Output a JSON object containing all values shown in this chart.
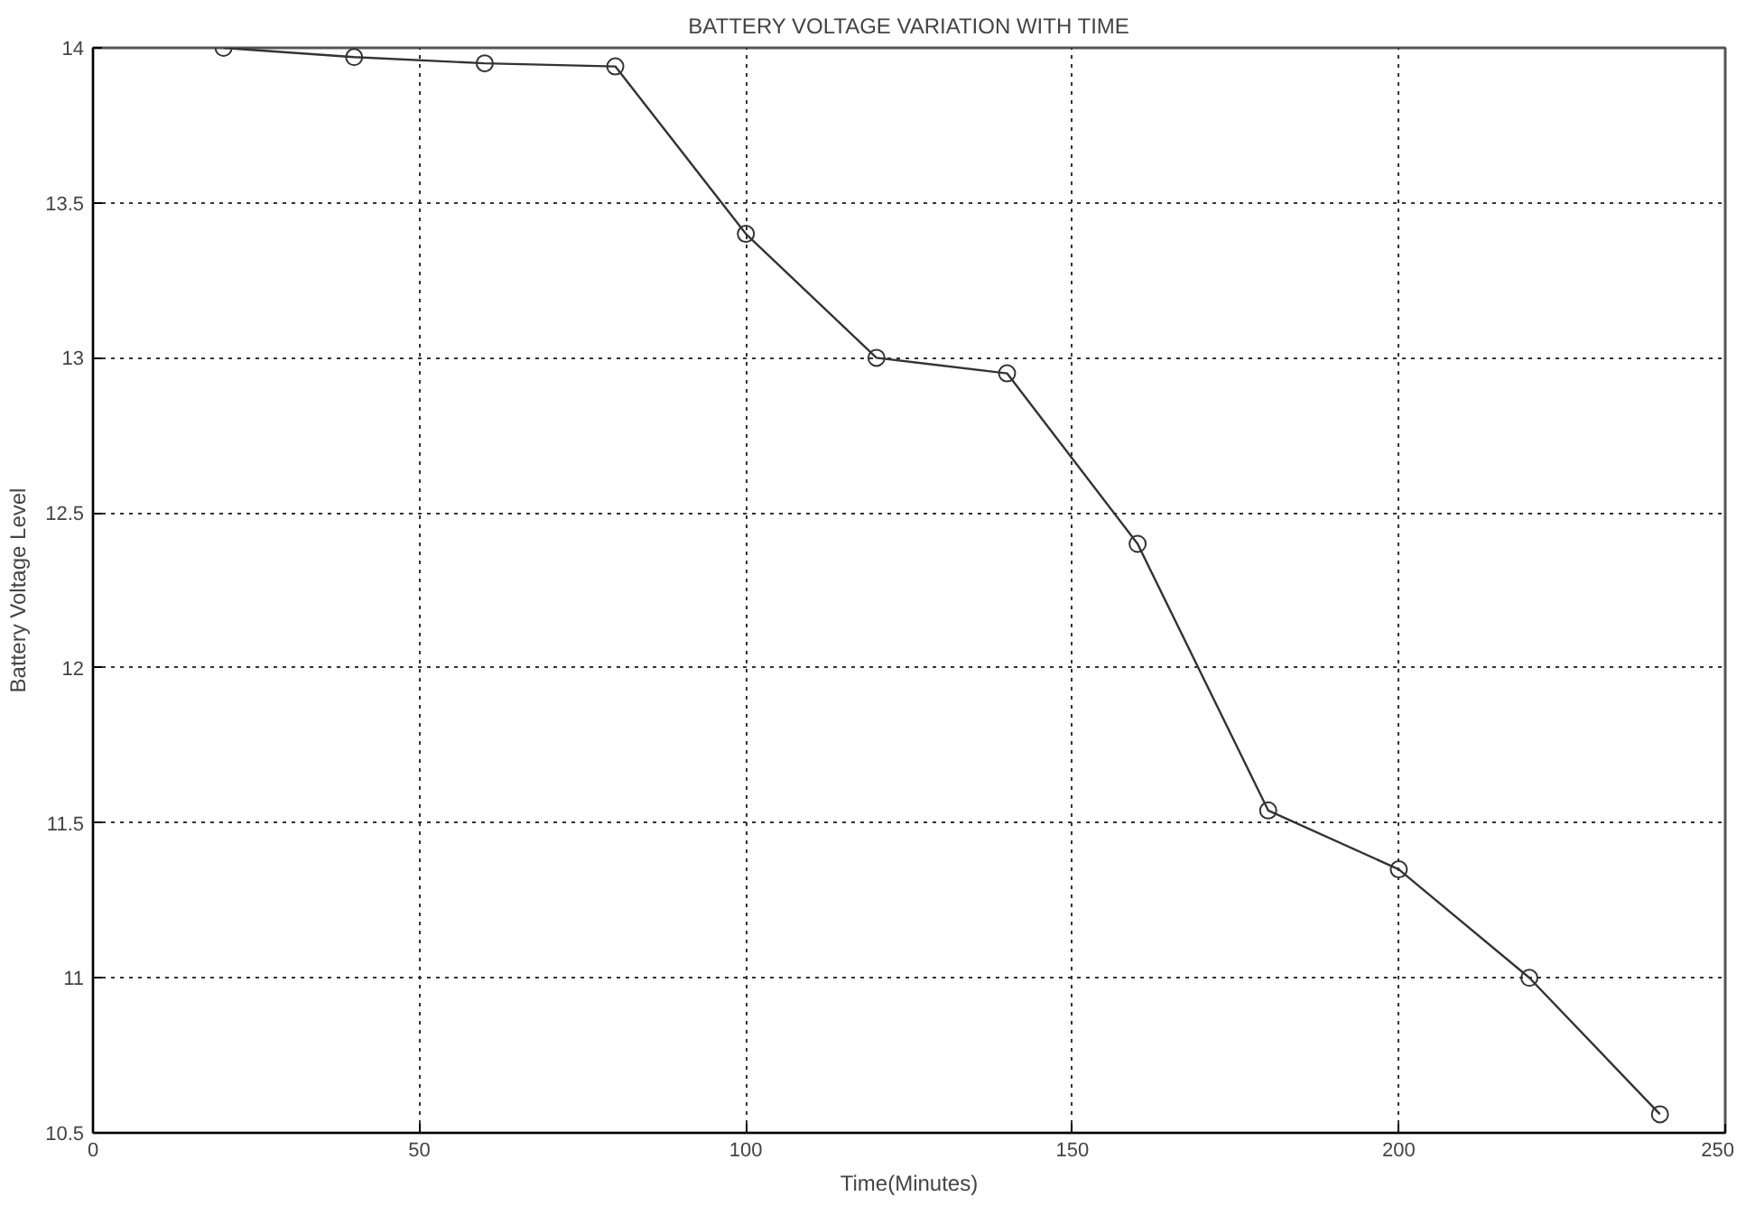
{
  "chart_data": {
    "type": "line",
    "title": "BATTERY VOLTAGE VARIATION WITH TIME",
    "xlabel": "Time(Minutes)",
    "ylabel": "Battery Voltage Level",
    "x": [
      20,
      40,
      60,
      80,
      100,
      120,
      140,
      160,
      180,
      200,
      220,
      240
    ],
    "series": [
      {
        "color": "#333333",
        "values": [
          14.0,
          13.97,
          13.95,
          13.94,
          13.4,
          13.0,
          12.95,
          12.4,
          11.54,
          11.35,
          11.0,
          10.56
        ]
      }
    ],
    "xlim": [
      0,
      250
    ],
    "xticks": [
      0,
      50,
      100,
      150,
      200,
      250
    ],
    "ylim": [
      10.5,
      14
    ],
    "yticks": [
      10.5,
      11,
      11.5,
      12,
      12.5,
      13,
      13.5,
      14
    ],
    "grid": true,
    "marker": "circle",
    "line_style": "solid"
  }
}
